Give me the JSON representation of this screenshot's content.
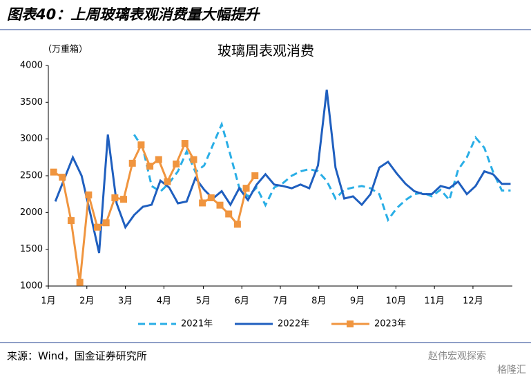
{
  "header": {
    "title": "图表40：上周玻璃表观消费量大幅提升"
  },
  "chart_data": {
    "type": "line",
    "title": "玻璃周表观消费",
    "y_label": "（万重箱）",
    "xlim": [
      0.2,
      53.2
    ],
    "xticks": [
      {
        "value": 0.2,
        "label": "1月"
      },
      {
        "value": 4.6,
        "label": "2月"
      },
      {
        "value": 9.0,
        "label": "3月"
      },
      {
        "value": 13.4,
        "label": "4月"
      },
      {
        "value": 17.9,
        "label": "5月"
      },
      {
        "value": 22.3,
        "label": "6月"
      },
      {
        "value": 26.7,
        "label": "7月"
      },
      {
        "value": 31.1,
        "label": "8月"
      },
      {
        "value": 35.5,
        "label": "9月"
      },
      {
        "value": 39.9,
        "label": "10月"
      },
      {
        "value": 44.3,
        "label": "11月"
      },
      {
        "value": 48.7,
        "label": "12月"
      }
    ],
    "ylim": [
      1000,
      4000
    ],
    "yticks": [
      1000,
      1500,
      2000,
      2500,
      3000,
      3500,
      4000
    ],
    "legend": "bottom",
    "series": [
      {
        "name": "2021年",
        "color": "#29aee6",
        "dash": true,
        "x": [
          10,
          11,
          12,
          13,
          14,
          15,
          16,
          17,
          18,
          19,
          20,
          21,
          22,
          23,
          24,
          25,
          26,
          27,
          28,
          29,
          30,
          31,
          32,
          33,
          34,
          35,
          36,
          37,
          38,
          39,
          40,
          41,
          42,
          43,
          44,
          45,
          46,
          47,
          48,
          49,
          50,
          51,
          52,
          53
        ],
        "values": [
          3060,
          2875,
          2360,
          2285,
          2400,
          2560,
          2830,
          2550,
          2640,
          2920,
          3200,
          2780,
          2340,
          2220,
          2340,
          2100,
          2340,
          2400,
          2500,
          2560,
          2590,
          2560,
          2430,
          2190,
          2310,
          2340,
          2360,
          2330,
          2250,
          1900,
          2060,
          2170,
          2250,
          2270,
          2220,
          2310,
          2170,
          2580,
          2750,
          3020,
          2880,
          2550,
          2300,
          2300
        ]
      },
      {
        "name": "2022年",
        "color": "#1f5fbf",
        "dash": false,
        "x": [
          1,
          2,
          3,
          4,
          5,
          6,
          7,
          8,
          9,
          10,
          11,
          12,
          13,
          14,
          15,
          16,
          17,
          18,
          19,
          20,
          21,
          22,
          23,
          24,
          25,
          26,
          27,
          28,
          29,
          30,
          31,
          32,
          33,
          34,
          35,
          36,
          37,
          38,
          39,
          40,
          41,
          42,
          43,
          44,
          45,
          46,
          47,
          48,
          49,
          50,
          51,
          52,
          53
        ],
        "values": [
          2150,
          2450,
          2750,
          2500,
          1984,
          1450,
          3060,
          2125,
          1800,
          1966,
          2078,
          2106,
          2434,
          2340,
          2125,
          2150,
          2470,
          2310,
          2190,
          2290,
          2106,
          2330,
          2170,
          2380,
          2520,
          2380,
          2360,
          2330,
          2380,
          2330,
          2640,
          3670,
          2610,
          2190,
          2220,
          2106,
          2250,
          2610,
          2690,
          2530,
          2390,
          2290,
          2250,
          2250,
          2360,
          2330,
          2420,
          2250,
          2360,
          2560,
          2520,
          2390,
          2390
        ]
      },
      {
        "name": "2023年",
        "color": "#f0953f",
        "dash": false,
        "markers": true,
        "x": [
          0.8,
          1.8,
          2.8,
          3.8,
          4.8,
          5.8,
          6.8,
          7.8,
          8.8,
          9.8,
          10.8,
          11.8,
          12.8,
          13.8,
          14.8,
          15.8,
          16.8,
          17.8,
          18.8,
          19.8,
          20.8,
          21.8,
          22.8,
          23.8
        ],
        "values": [
          2550,
          2480,
          1890,
          1050,
          2240,
          1800,
          1860,
          2200,
          2180,
          2670,
          2920,
          2630,
          2720,
          2420,
          2660,
          2940,
          2720,
          2130,
          2200,
          2100,
          1980,
          1840,
          2330,
          2500
        ]
      }
    ]
  },
  "footer": {
    "source": "来源：Wind，国金证券研究所",
    "watermark": "赵伟宏观探索",
    "watermark2": "格隆汇"
  }
}
